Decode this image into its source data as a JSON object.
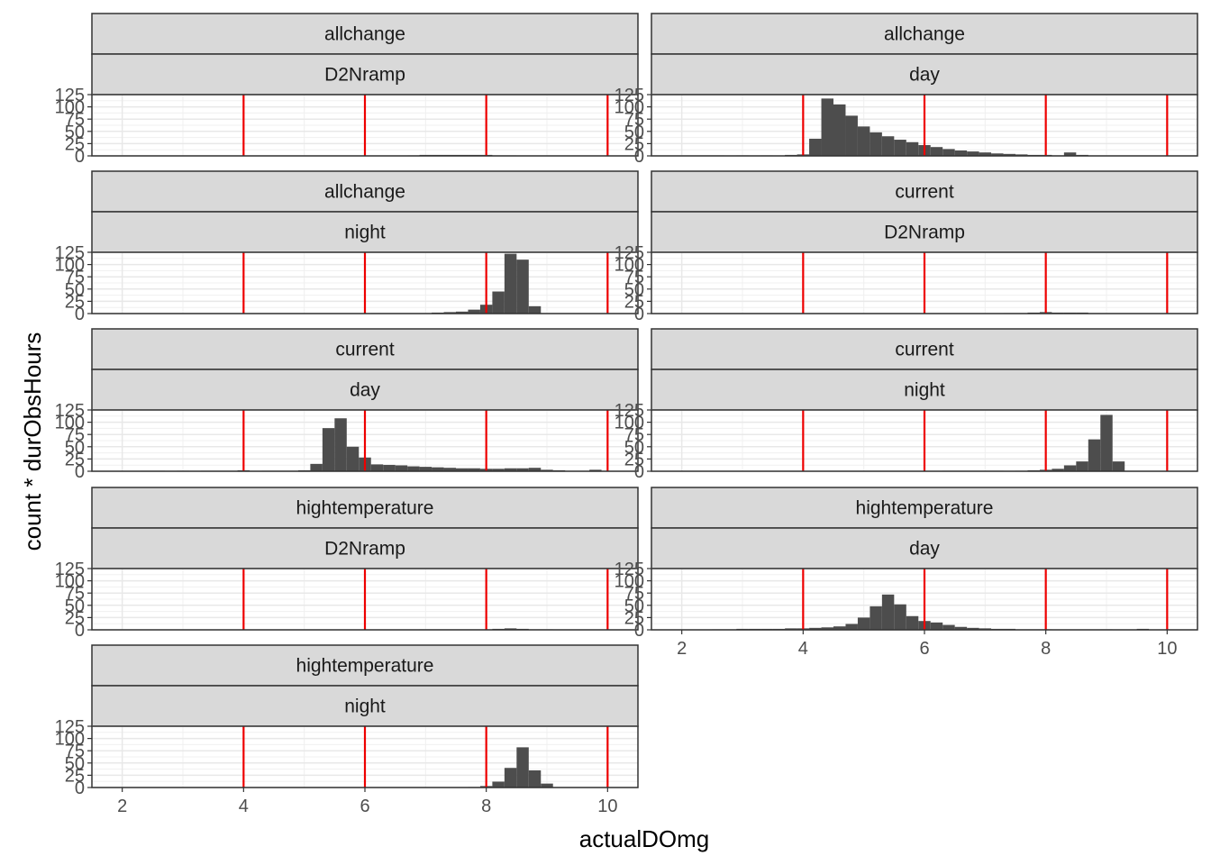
{
  "chart_data": {
    "type": "bar",
    "subtype": "histogram",
    "title": "",
    "xlabel": "actualDOmg",
    "ylabel": "count * durObsHours",
    "xlim": [
      1.5,
      10.5
    ],
    "ylim": [
      0,
      125
    ],
    "x_ticks": [
      2,
      4,
      6,
      8,
      10
    ],
    "x_tick_labels": [
      "2",
      "4",
      "6",
      "8",
      "10"
    ],
    "y_ticks": [
      0,
      25,
      50,
      75,
      100,
      125
    ],
    "y_tick_labels": [
      "0",
      "25",
      "50",
      "75",
      "100",
      "125"
    ],
    "bin_width": 0.2,
    "grid": true,
    "reference_lines": [
      4,
      6,
      8,
      10
    ],
    "reference_line_color": "#ee0000",
    "bar_color": "#4d4d4d",
    "strip_color": "#d9d9d9",
    "facet_layout": "5 rows x 2 columns, wrapped",
    "panels": [
      {
        "strip1": "allchange",
        "strip2": "D2Nramp",
        "bins": [
          [
            6.8,
            1
          ],
          [
            7.0,
            2
          ],
          [
            7.2,
            2
          ],
          [
            7.4,
            2
          ],
          [
            7.6,
            2
          ],
          [
            7.8,
            2
          ],
          [
            8.0,
            2
          ],
          [
            8.2,
            1
          ],
          [
            8.4,
            1
          ]
        ]
      },
      {
        "strip1": "allchange",
        "strip2": "day",
        "bins": [
          [
            2.4,
            1
          ],
          [
            2.6,
            1
          ],
          [
            3.0,
            1
          ],
          [
            3.4,
            1
          ],
          [
            3.8,
            2
          ],
          [
            4.0,
            3
          ],
          [
            4.2,
            35
          ],
          [
            4.4,
            117
          ],
          [
            4.6,
            105
          ],
          [
            4.8,
            82
          ],
          [
            5.0,
            60
          ],
          [
            5.2,
            48
          ],
          [
            5.4,
            40
          ],
          [
            5.6,
            33
          ],
          [
            5.8,
            28
          ],
          [
            6.0,
            22
          ],
          [
            6.2,
            18
          ],
          [
            6.4,
            14
          ],
          [
            6.6,
            11
          ],
          [
            6.8,
            9
          ],
          [
            7.0,
            7
          ],
          [
            7.2,
            5
          ],
          [
            7.4,
            4
          ],
          [
            7.6,
            3
          ],
          [
            7.8,
            2
          ],
          [
            8.0,
            2
          ],
          [
            8.2,
            1
          ],
          [
            8.4,
            7
          ],
          [
            8.6,
            2
          ]
        ]
      },
      {
        "strip1": "allchange",
        "strip2": "night",
        "bins": [
          [
            6.2,
            1
          ],
          [
            6.4,
            1
          ],
          [
            6.6,
            1
          ],
          [
            6.8,
            1
          ],
          [
            7.0,
            1
          ],
          [
            7.2,
            2
          ],
          [
            7.4,
            3
          ],
          [
            7.6,
            4
          ],
          [
            7.8,
            8
          ],
          [
            8.0,
            18
          ],
          [
            8.2,
            45
          ],
          [
            8.4,
            122
          ],
          [
            8.6,
            110
          ],
          [
            8.8,
            15
          ]
        ]
      },
      {
        "strip1": "current",
        "strip2": "D2Nramp",
        "bins": [
          [
            7.4,
            1
          ],
          [
            7.6,
            1
          ],
          [
            7.8,
            2
          ],
          [
            8.0,
            3
          ],
          [
            8.2,
            2
          ],
          [
            8.4,
            2
          ],
          [
            8.6,
            2
          ],
          [
            8.8,
            1
          ]
        ]
      },
      {
        "strip1": "current",
        "strip2": "day",
        "bins": [
          [
            2.4,
            1
          ],
          [
            2.6,
            1
          ],
          [
            3.0,
            1
          ],
          [
            3.4,
            1
          ],
          [
            3.6,
            1
          ],
          [
            3.8,
            1
          ],
          [
            4.0,
            2
          ],
          [
            4.4,
            1
          ],
          [
            4.6,
            1
          ],
          [
            4.8,
            1
          ],
          [
            5.0,
            2
          ],
          [
            5.2,
            15
          ],
          [
            5.4,
            88
          ],
          [
            5.6,
            108
          ],
          [
            5.8,
            50
          ],
          [
            6.0,
            28
          ],
          [
            6.2,
            14
          ],
          [
            6.4,
            13
          ],
          [
            6.6,
            12
          ],
          [
            6.8,
            10
          ],
          [
            7.0,
            9
          ],
          [
            7.2,
            8
          ],
          [
            7.4,
            7
          ],
          [
            7.6,
            6
          ],
          [
            7.8,
            6
          ],
          [
            8.0,
            5
          ],
          [
            8.2,
            5
          ],
          [
            8.4,
            6
          ],
          [
            8.6,
            6
          ],
          [
            8.8,
            7
          ],
          [
            9.0,
            3
          ],
          [
            9.2,
            2
          ],
          [
            9.8,
            3
          ]
        ]
      },
      {
        "strip1": "current",
        "strip2": "night",
        "bins": [
          [
            6.4,
            1
          ],
          [
            6.6,
            1
          ],
          [
            6.8,
            1
          ],
          [
            7.0,
            1
          ],
          [
            7.2,
            1
          ],
          [
            7.6,
            1
          ],
          [
            7.8,
            2
          ],
          [
            8.0,
            3
          ],
          [
            8.2,
            5
          ],
          [
            8.4,
            12
          ],
          [
            8.6,
            20
          ],
          [
            8.8,
            65
          ],
          [
            9.0,
            115
          ],
          [
            9.2,
            20
          ]
        ]
      },
      {
        "strip1": "hightemperature",
        "strip2": "D2Nramp",
        "bins": [
          [
            7.0,
            1
          ],
          [
            7.2,
            1
          ],
          [
            7.4,
            1
          ],
          [
            7.6,
            1
          ],
          [
            7.8,
            1
          ],
          [
            8.0,
            1
          ],
          [
            8.2,
            2
          ],
          [
            8.4,
            3
          ],
          [
            8.6,
            2
          ],
          [
            8.8,
            1
          ],
          [
            9.0,
            1
          ]
        ]
      },
      {
        "strip1": "hightemperature",
        "strip2": "day",
        "bins": [
          [
            2.6,
            1
          ],
          [
            2.8,
            1
          ],
          [
            3.0,
            2
          ],
          [
            3.2,
            2
          ],
          [
            3.4,
            2
          ],
          [
            3.6,
            2
          ],
          [
            3.8,
            3
          ],
          [
            4.0,
            3
          ],
          [
            4.2,
            4
          ],
          [
            4.4,
            5
          ],
          [
            4.6,
            7
          ],
          [
            4.8,
            12
          ],
          [
            5.0,
            25
          ],
          [
            5.2,
            48
          ],
          [
            5.4,
            72
          ],
          [
            5.6,
            52
          ],
          [
            5.8,
            28
          ],
          [
            6.0,
            18
          ],
          [
            6.2,
            15
          ],
          [
            6.4,
            10
          ],
          [
            6.6,
            6
          ],
          [
            6.8,
            4
          ],
          [
            7.0,
            3
          ],
          [
            7.2,
            2
          ],
          [
            7.4,
            2
          ],
          [
            7.6,
            1
          ],
          [
            7.8,
            1
          ],
          [
            8.0,
            1
          ],
          [
            9.0,
            1
          ],
          [
            9.6,
            2
          ]
        ]
      },
      {
        "strip1": "hightemperature",
        "strip2": "night",
        "bins": [
          [
            7.8,
            1
          ],
          [
            8.0,
            3
          ],
          [
            8.2,
            12
          ],
          [
            8.4,
            40
          ],
          [
            8.6,
            82
          ],
          [
            8.8,
            35
          ],
          [
            9.0,
            8
          ]
        ]
      }
    ]
  }
}
